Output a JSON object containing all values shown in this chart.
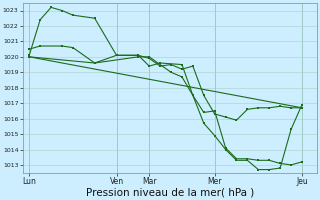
{
  "background_color": "#cceeff",
  "grid_color": "#aacccc",
  "line_color": "#1a6b1a",
  "ylim": [
    1012.5,
    1023.5
  ],
  "yticks": [
    1013,
    1014,
    1015,
    1016,
    1017,
    1018,
    1019,
    1020,
    1021,
    1022,
    1023
  ],
  "xlabel": "Pression niveau de la mer( hPa )",
  "xlabel_fontsize": 7.5,
  "day_labels": [
    "Lun",
    "Ven",
    "Mar",
    "Mer",
    "Jeu"
  ],
  "day_positions": [
    0,
    4.0,
    5.5,
    8.5,
    12.5
  ],
  "xlim": [
    -0.3,
    13.2
  ],
  "straight_line": {
    "x": [
      0,
      12.5
    ],
    "y": [
      1020.0,
      1016.7
    ]
  },
  "series1": {
    "x": [
      0,
      0.5,
      1.0,
      1.5,
      2.0,
      3.0,
      4.0,
      5.0,
      5.5,
      6.0,
      6.5,
      7.0,
      7.5,
      8.0,
      8.5,
      9.0,
      9.5,
      10.0,
      10.5,
      11.0,
      11.5,
      12.0,
      12.5
    ],
    "y": [
      1020.1,
      1022.4,
      1023.2,
      1023.0,
      1022.7,
      1022.5,
      1020.1,
      1020.1,
      1019.9,
      1019.4,
      1019.5,
      1019.2,
      1019.4,
      1017.5,
      1016.3,
      1016.1,
      1015.9,
      1016.6,
      1016.7,
      1016.7,
      1016.8,
      1016.7,
      1016.7
    ]
  },
  "series2": {
    "x": [
      0,
      0.5,
      1.5,
      2.0,
      3.0,
      4.0,
      5.0,
      5.5,
      6.0,
      7.0,
      7.5,
      8.0,
      8.5,
      9.0,
      9.5,
      10.0,
      10.5,
      11.0,
      11.5,
      12.0,
      12.5
    ],
    "y": [
      1020.5,
      1020.7,
      1020.7,
      1020.6,
      1019.6,
      1020.1,
      1020.1,
      1019.4,
      1019.6,
      1019.5,
      1017.5,
      1016.4,
      1016.5,
      1014.1,
      1013.4,
      1013.4,
      1013.3,
      1013.3,
      1013.1,
      1013.0,
      1013.2
    ]
  },
  "series3": {
    "x": [
      0,
      3.0,
      5.0,
      5.5,
      6.5,
      7.0,
      7.5,
      8.0,
      8.5,
      9.0,
      9.5,
      10.0,
      10.5,
      11.0,
      11.5,
      12.0,
      12.5
    ],
    "y": [
      1020.0,
      1019.6,
      1020.0,
      1020.0,
      1019.0,
      1018.7,
      1017.5,
      1015.7,
      1014.9,
      1014.0,
      1013.3,
      1013.3,
      1012.7,
      1012.7,
      1012.8,
      1015.3,
      1016.9
    ]
  }
}
